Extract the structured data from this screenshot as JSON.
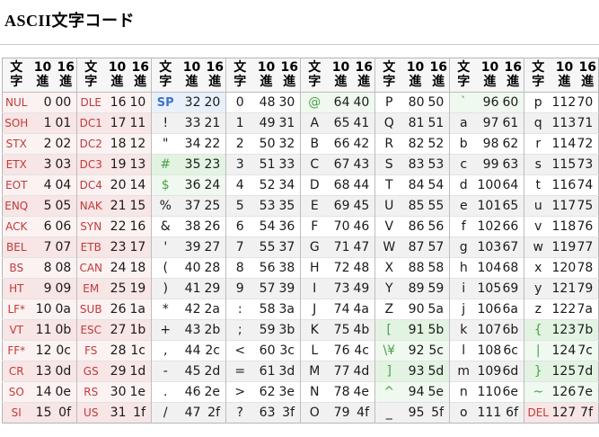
{
  "page": {
    "title": "ASCII文字コード"
  },
  "colors": {
    "ctrl_text": "#c03a3a",
    "sp_text": "#4273c8",
    "var_text": "#4ba04b",
    "body_text": "#1a1a1a",
    "ctrl_bg": "#fcf2f2",
    "ctrl_bg_alt": "#f8e5e5",
    "sp_bg": "#e8f1fa",
    "var_bg": "#eff9ef",
    "var_bg_alt": "#e2f3e2",
    "norm_bg": "#ffffff",
    "norm_bg_alt": "#f1f1f1",
    "header_bg": "#f6f6f6",
    "grid": "#e3e3e3",
    "group_grid": "#bdbdbd",
    "outer_border": "#b5b5b5",
    "rule": "#cccccc"
  },
  "table": {
    "group_count": 8,
    "column_headers": {
      "char": "文\n字",
      "dec": "10\n進",
      "hex": "16\n進"
    },
    "rows": [
      [
        [
          "NUL",
          "0",
          "00",
          "ctrl"
        ],
        [
          "DLE",
          "16",
          "10",
          "ctrl"
        ],
        [
          "SP",
          "32",
          "20",
          "sp"
        ],
        [
          "0",
          "48",
          "30",
          "norm"
        ],
        [
          "@",
          "64",
          "40",
          "var"
        ],
        [
          "P",
          "80",
          "50",
          "norm"
        ],
        [
          "`",
          "96",
          "60",
          "var"
        ],
        [
          "p",
          "112",
          "70",
          "norm"
        ]
      ],
      [
        [
          "SOH",
          "1",
          "01",
          "ctrl"
        ],
        [
          "DC1",
          "17",
          "11",
          "ctrl"
        ],
        [
          "!",
          "33",
          "21",
          "norm"
        ],
        [
          "1",
          "49",
          "31",
          "norm"
        ],
        [
          "A",
          "65",
          "41",
          "norm"
        ],
        [
          "Q",
          "81",
          "51",
          "norm"
        ],
        [
          "a",
          "97",
          "61",
          "norm"
        ],
        [
          "q",
          "113",
          "71",
          "norm"
        ]
      ],
      [
        [
          "STX",
          "2",
          "02",
          "ctrl"
        ],
        [
          "DC2",
          "18",
          "12",
          "ctrl"
        ],
        [
          "\"",
          "34",
          "22",
          "norm"
        ],
        [
          "2",
          "50",
          "32",
          "norm"
        ],
        [
          "B",
          "66",
          "42",
          "norm"
        ],
        [
          "R",
          "82",
          "52",
          "norm"
        ],
        [
          "b",
          "98",
          "62",
          "norm"
        ],
        [
          "r",
          "114",
          "72",
          "norm"
        ]
      ],
      [
        [
          "ETX",
          "3",
          "03",
          "ctrl"
        ],
        [
          "DC3",
          "19",
          "13",
          "ctrl"
        ],
        [
          "#",
          "35",
          "23",
          "var"
        ],
        [
          "3",
          "51",
          "33",
          "norm"
        ],
        [
          "C",
          "67",
          "43",
          "norm"
        ],
        [
          "S",
          "83",
          "53",
          "norm"
        ],
        [
          "c",
          "99",
          "63",
          "norm"
        ],
        [
          "s",
          "115",
          "73",
          "norm"
        ]
      ],
      [
        [
          "EOT",
          "4",
          "04",
          "ctrl"
        ],
        [
          "DC4",
          "20",
          "14",
          "ctrl"
        ],
        [
          "$",
          "36",
          "24",
          "var"
        ],
        [
          "4",
          "52",
          "34",
          "norm"
        ],
        [
          "D",
          "68",
          "44",
          "norm"
        ],
        [
          "T",
          "84",
          "54",
          "norm"
        ],
        [
          "d",
          "100",
          "64",
          "norm"
        ],
        [
          "t",
          "116",
          "74",
          "norm"
        ]
      ],
      [
        [
          "ENQ",
          "5",
          "05",
          "ctrl"
        ],
        [
          "NAK",
          "21",
          "15",
          "ctrl"
        ],
        [
          "%",
          "37",
          "25",
          "norm"
        ],
        [
          "5",
          "53",
          "35",
          "norm"
        ],
        [
          "E",
          "69",
          "45",
          "norm"
        ],
        [
          "U",
          "85",
          "55",
          "norm"
        ],
        [
          "e",
          "101",
          "65",
          "norm"
        ],
        [
          "u",
          "117",
          "75",
          "norm"
        ]
      ],
      [
        [
          "ACK",
          "6",
          "06",
          "ctrl"
        ],
        [
          "SYN",
          "22",
          "16",
          "ctrl"
        ],
        [
          "&",
          "38",
          "26",
          "norm"
        ],
        [
          "6",
          "54",
          "36",
          "norm"
        ],
        [
          "F",
          "70",
          "46",
          "norm"
        ],
        [
          "V",
          "86",
          "56",
          "norm"
        ],
        [
          "f",
          "102",
          "66",
          "norm"
        ],
        [
          "v",
          "118",
          "76",
          "norm"
        ]
      ],
      [
        [
          "BEL",
          "7",
          "07",
          "ctrl"
        ],
        [
          "ETB",
          "23",
          "17",
          "ctrl"
        ],
        [
          "'",
          "39",
          "27",
          "norm"
        ],
        [
          "7",
          "55",
          "37",
          "norm"
        ],
        [
          "G",
          "71",
          "47",
          "norm"
        ],
        [
          "W",
          "87",
          "57",
          "norm"
        ],
        [
          "g",
          "103",
          "67",
          "norm"
        ],
        [
          "w",
          "119",
          "77",
          "norm"
        ]
      ],
      [
        [
          "BS",
          "8",
          "08",
          "ctrl"
        ],
        [
          "CAN",
          "24",
          "18",
          "ctrl"
        ],
        [
          "(",
          "40",
          "28",
          "norm"
        ],
        [
          "8",
          "56",
          "38",
          "norm"
        ],
        [
          "H",
          "72",
          "48",
          "norm"
        ],
        [
          "X",
          "88",
          "58",
          "norm"
        ],
        [
          "h",
          "104",
          "68",
          "norm"
        ],
        [
          "x",
          "120",
          "78",
          "norm"
        ]
      ],
      [
        [
          "HT",
          "9",
          "09",
          "ctrl"
        ],
        [
          "EM",
          "25",
          "19",
          "ctrl"
        ],
        [
          ")",
          "41",
          "29",
          "norm"
        ],
        [
          "9",
          "57",
          "39",
          "norm"
        ],
        [
          "I",
          "73",
          "49",
          "norm"
        ],
        [
          "Y",
          "89",
          "59",
          "norm"
        ],
        [
          "i",
          "105",
          "69",
          "norm"
        ],
        [
          "y",
          "121",
          "79",
          "norm"
        ]
      ],
      [
        [
          "LF*",
          "10",
          "0a",
          "ctrl"
        ],
        [
          "SUB",
          "26",
          "1a",
          "ctrl"
        ],
        [
          "*",
          "42",
          "2a",
          "norm"
        ],
        [
          ":",
          "58",
          "3a",
          "norm"
        ],
        [
          "J",
          "74",
          "4a",
          "norm"
        ],
        [
          "Z",
          "90",
          "5a",
          "norm"
        ],
        [
          "j",
          "106",
          "6a",
          "norm"
        ],
        [
          "z",
          "122",
          "7a",
          "norm"
        ]
      ],
      [
        [
          "VT",
          "11",
          "0b",
          "ctrl"
        ],
        [
          "ESC",
          "27",
          "1b",
          "ctrl"
        ],
        [
          "+",
          "43",
          "2b",
          "norm"
        ],
        [
          ";",
          "59",
          "3b",
          "norm"
        ],
        [
          "K",
          "75",
          "4b",
          "norm"
        ],
        [
          "[",
          "91",
          "5b",
          "var"
        ],
        [
          "k",
          "107",
          "6b",
          "norm"
        ],
        [
          "{",
          "123",
          "7b",
          "var"
        ]
      ],
      [
        [
          "FF*",
          "12",
          "0c",
          "ctrl"
        ],
        [
          "FS",
          "28",
          "1c",
          "ctrl"
        ],
        [
          ",",
          "44",
          "2c",
          "norm"
        ],
        [
          "<",
          "60",
          "3c",
          "norm"
        ],
        [
          "L",
          "76",
          "4c",
          "norm"
        ],
        [
          "\\¥",
          "92",
          "5c",
          "var"
        ],
        [
          "l",
          "108",
          "6c",
          "norm"
        ],
        [
          "|",
          "124",
          "7c",
          "var"
        ]
      ],
      [
        [
          "CR",
          "13",
          "0d",
          "ctrl"
        ],
        [
          "GS",
          "29",
          "1d",
          "ctrl"
        ],
        [
          "-",
          "45",
          "2d",
          "norm"
        ],
        [
          "=",
          "61",
          "3d",
          "norm"
        ],
        [
          "M",
          "77",
          "4d",
          "norm"
        ],
        [
          "]",
          "93",
          "5d",
          "var"
        ],
        [
          "m",
          "109",
          "6d",
          "norm"
        ],
        [
          "}",
          "125",
          "7d",
          "var"
        ]
      ],
      [
        [
          "SO",
          "14",
          "0e",
          "ctrl"
        ],
        [
          "RS",
          "30",
          "1e",
          "ctrl"
        ],
        [
          ".",
          "46",
          "2e",
          "norm"
        ],
        [
          ">",
          "62",
          "3e",
          "norm"
        ],
        [
          "N",
          "78",
          "4e",
          "norm"
        ],
        [
          "^",
          "94",
          "5e",
          "var"
        ],
        [
          "n",
          "110",
          "6e",
          "norm"
        ],
        [
          "~",
          "126",
          "7e",
          "var"
        ]
      ],
      [
        [
          "SI",
          "15",
          "0f",
          "ctrl"
        ],
        [
          "US",
          "31",
          "1f",
          "ctrl"
        ],
        [
          "/",
          "47",
          "2f",
          "norm"
        ],
        [
          "?",
          "63",
          "3f",
          "norm"
        ],
        [
          "O",
          "79",
          "4f",
          "norm"
        ],
        [
          "_",
          "95",
          "5f",
          "norm"
        ],
        [
          "o",
          "111",
          "6f",
          "norm"
        ],
        [
          "DEL",
          "127",
          "7f",
          "ctrl"
        ]
      ]
    ]
  }
}
